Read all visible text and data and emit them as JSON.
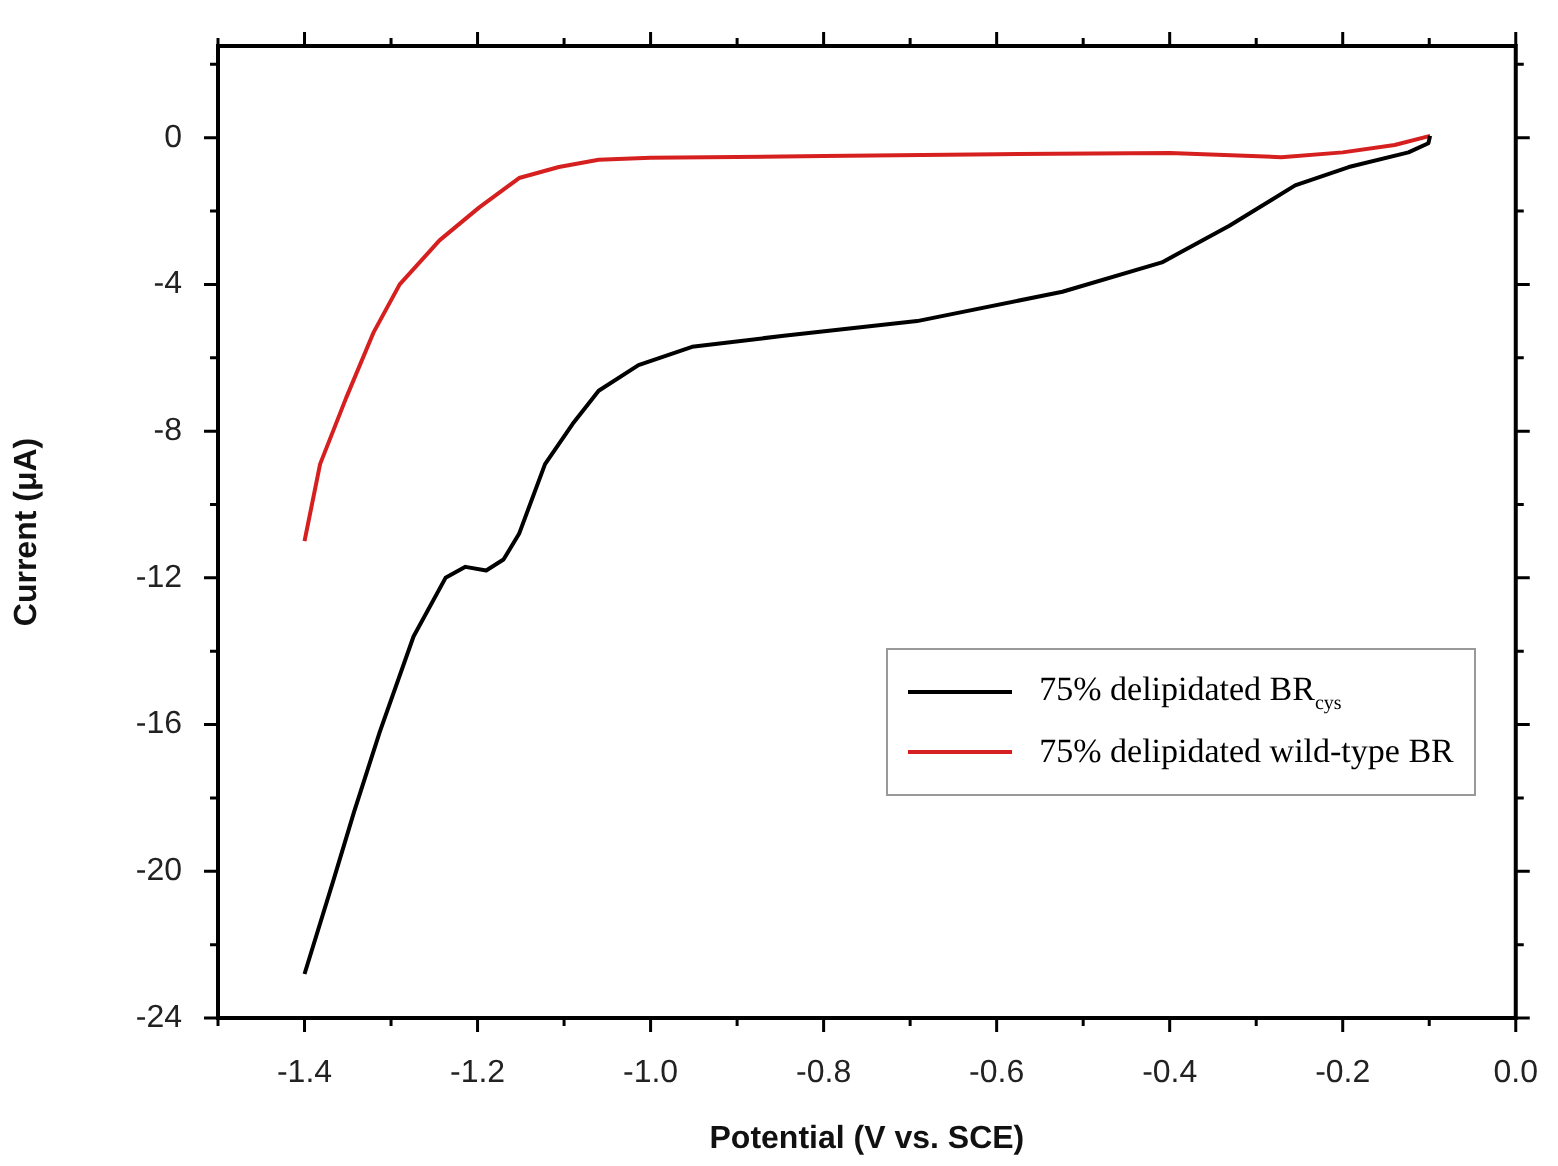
{
  "chart_data": {
    "type": "line",
    "xlabel": "Potential (V vs. SCE)",
    "ylabel": "Current (μA)",
    "xlim": [
      -1.5,
      0
    ],
    "ylim": [
      -24,
      2.5
    ],
    "xticks": [
      {
        "value": -1.5,
        "label": null
      },
      {
        "value": -1.4,
        "label": "-1.4"
      },
      {
        "value": -1.3,
        "label": null
      },
      {
        "value": -1.2,
        "label": "-1.2"
      },
      {
        "value": -1.1,
        "label": null
      },
      {
        "value": -1.0,
        "label": "-1.0"
      },
      {
        "value": -0.9,
        "label": null
      },
      {
        "value": -0.8,
        "label": "-0.8"
      },
      {
        "value": -0.7,
        "label": null
      },
      {
        "value": -0.6,
        "label": "-0.6"
      },
      {
        "value": -0.5,
        "label": null
      },
      {
        "value": -0.4,
        "label": "-0.4"
      },
      {
        "value": -0.3,
        "label": null
      },
      {
        "value": -0.2,
        "label": "-0.2"
      },
      {
        "value": -0.1,
        "label": null
      },
      {
        "value": 0,
        "label": "0.0"
      }
    ],
    "yticks": [
      {
        "value": 2,
        "label": null
      },
      0,
      {
        "value": -2,
        "label": null
      },
      -4,
      {
        "value": -6,
        "label": null
      },
      -8,
      {
        "value": -10,
        "label": null
      },
      -12,
      {
        "value": -14,
        "label": null
      },
      -16,
      {
        "value": -18,
        "label": null
      },
      -20,
      {
        "value": -22,
        "label": null
      },
      -24
    ],
    "legend": "bottom right",
    "grid": false,
    "line_style": "solid",
    "marker": "none",
    "series": [
      {
        "name": "75% delipidated BR$_{cys}$",
        "color": "#000000",
        "x": [
          -1.4,
          -1.366,
          -1.343,
          -1.313,
          -1.274,
          -1.237,
          -1.214,
          -1.19,
          -1.17,
          -1.152,
          -1.122,
          -1.09,
          -1.06,
          -1.014,
          -0.952,
          -0.846,
          -0.692,
          -0.524,
          -0.409,
          -0.331,
          -0.255,
          -0.193,
          -0.124,
          -0.101,
          -0.099
        ],
        "values": [
          -22.8,
          -20.2,
          -18.4,
          -16.2,
          -13.6,
          -12.0,
          -11.7,
          -11.8,
          -11.5,
          -10.8,
          -8.9,
          -7.8,
          -6.9,
          -6.2,
          -5.7,
          -5.4,
          -5.0,
          -4.2,
          -3.4,
          -2.4,
          -1.3,
          -0.8,
          -0.4,
          -0.15,
          0.05
        ]
      },
      {
        "name": "75% delipidated wild-type BR",
        "color": "#d62020",
        "x": [
          -1.4,
          -1.382,
          -1.352,
          -1.32,
          -1.29,
          -1.244,
          -1.198,
          -1.152,
          -1.106,
          -1.06,
          -1.0,
          -0.8,
          -0.6,
          -0.4,
          -0.271,
          -0.2,
          -0.14,
          -0.099
        ],
        "values": [
          -11.0,
          -8.9,
          -7.1,
          -5.3,
          -4.0,
          -2.8,
          -1.9,
          -1.1,
          -0.8,
          -0.6,
          -0.55,
          -0.5,
          -0.45,
          -0.42,
          -0.53,
          -0.4,
          -0.2,
          0.05
        ]
      }
    ]
  }
}
